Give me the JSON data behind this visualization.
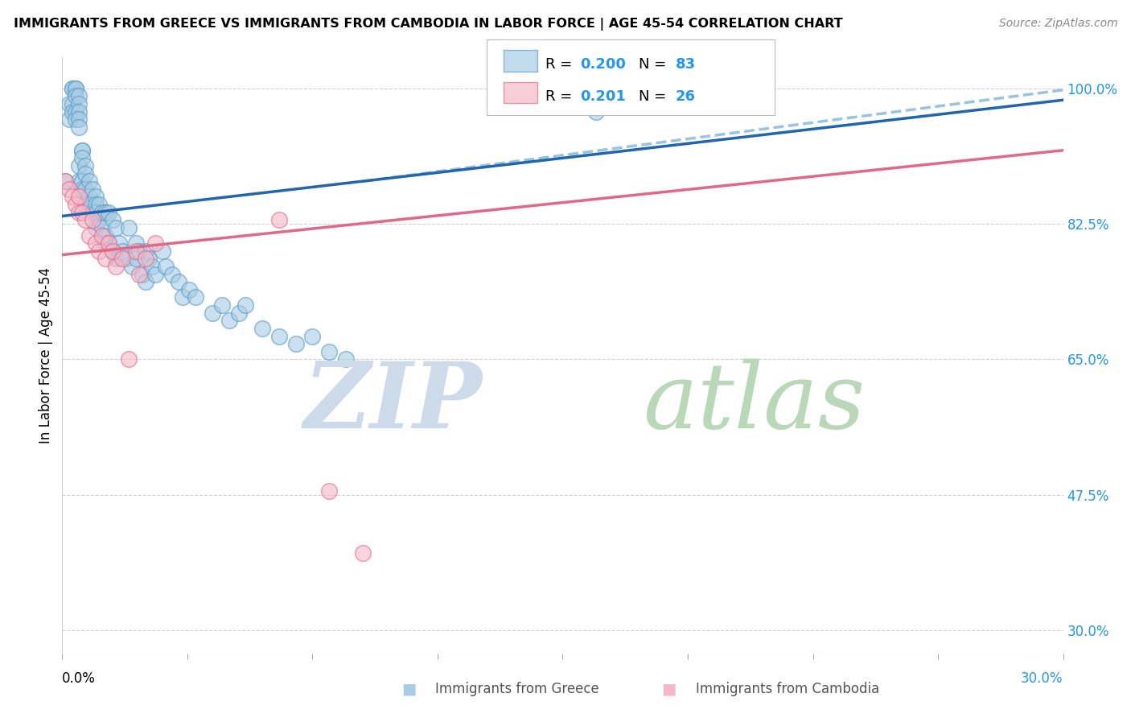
{
  "title": "IMMIGRANTS FROM GREECE VS IMMIGRANTS FROM CAMBODIA IN LABOR FORCE | AGE 45-54 CORRELATION CHART",
  "source": "Source: ZipAtlas.com",
  "ylabel": "In Labor Force | Age 45-54",
  "xmin": 0.0,
  "xmax": 30.0,
  "ymin": 27.0,
  "ymax": 104.0,
  "greece_R": 0.2,
  "greece_N": 83,
  "cambodia_R": 0.201,
  "cambodia_N": 26,
  "greece_color": "#a8cce4",
  "greece_edge": "#5b9dc9",
  "cambodia_color": "#f5b8c8",
  "cambodia_edge": "#e07090",
  "trend_greece_solid": "#2166ac",
  "trend_greece_dashed": "#99c4e0",
  "trend_cambodia_solid": "#e06888",
  "grid_color": "#d0d0d0",
  "watermark_zip_color": "#ccdaea",
  "watermark_atlas_color": "#b8d8b8",
  "ytick_vals": [
    30.0,
    47.5,
    65.0,
    82.5,
    100.0
  ],
  "ytick_labels": [
    "30.0%",
    "47.5%",
    "65.0%",
    "82.5%",
    "100.0%"
  ],
  "xtick_vals": [
    0.0,
    3.75,
    7.5,
    11.25,
    15.0,
    18.75,
    22.5,
    26.25,
    30.0
  ],
  "greece_x": [
    0.1,
    0.2,
    0.2,
    0.3,
    0.3,
    0.3,
    0.3,
    0.4,
    0.4,
    0.4,
    0.4,
    0.4,
    0.5,
    0.5,
    0.5,
    0.5,
    0.5,
    0.5,
    0.5,
    0.6,
    0.6,
    0.6,
    0.6,
    0.6,
    0.7,
    0.7,
    0.7,
    0.7,
    0.8,
    0.8,
    0.8,
    0.9,
    0.9,
    1.0,
    1.0,
    1.0,
    1.0,
    1.1,
    1.1,
    1.2,
    1.2,
    1.3,
    1.3,
    1.3,
    1.4,
    1.4,
    1.5,
    1.5,
    1.6,
    1.6,
    1.7,
    1.8,
    1.9,
    2.0,
    2.1,
    2.2,
    2.2,
    2.3,
    2.4,
    2.5,
    2.5,
    2.6,
    2.7,
    2.8,
    3.0,
    3.1,
    3.3,
    3.5,
    3.6,
    3.8,
    4.0,
    4.5,
    4.8,
    5.0,
    5.3,
    5.5,
    6.0,
    6.5,
    7.0,
    7.5,
    8.0,
    8.5,
    16.0
  ],
  "greece_y": [
    88,
    98,
    96,
    100,
    100,
    98,
    97,
    100,
    100,
    99,
    97,
    96,
    99,
    98,
    97,
    96,
    95,
    90,
    88,
    92,
    92,
    91,
    88,
    87,
    90,
    89,
    87,
    85,
    88,
    86,
    85,
    87,
    84,
    86,
    85,
    84,
    82,
    85,
    83,
    84,
    82,
    84,
    81,
    80,
    84,
    80,
    83,
    79,
    82,
    78,
    80,
    79,
    78,
    82,
    77,
    80,
    78,
    79,
    76,
    79,
    75,
    78,
    77,
    76,
    79,
    77,
    76,
    75,
    73,
    74,
    73,
    71,
    72,
    70,
    71,
    72,
    69,
    68,
    67,
    68,
    66,
    65,
    97
  ],
  "cambodia_x": [
    0.1,
    0.2,
    0.3,
    0.4,
    0.5,
    0.5,
    0.6,
    0.7,
    0.8,
    0.9,
    1.0,
    1.1,
    1.2,
    1.3,
    1.4,
    1.5,
    1.6,
    1.8,
    2.0,
    2.2,
    2.3,
    2.5,
    2.8,
    6.5,
    8.0,
    9.0
  ],
  "cambodia_y": [
    88,
    87,
    86,
    85,
    86,
    84,
    84,
    83,
    81,
    83,
    80,
    79,
    81,
    78,
    80,
    79,
    77,
    78,
    65,
    79,
    76,
    78,
    80,
    83,
    48,
    40
  ],
  "trend_greece_x0": 0.0,
  "trend_greece_y0": 83.5,
  "trend_greece_x1": 30.0,
  "trend_greece_y1": 98.5,
  "trend_cambodia_x0": 0.0,
  "trend_cambodia_y0": 78.5,
  "trend_cambodia_x1": 30.0,
  "trend_cambodia_y1": 92.0,
  "trend_dashed_x0": 9.0,
  "trend_dashed_y0": 88.0,
  "trend_dashed_x1": 30.0,
  "trend_dashed_y1": 99.8
}
